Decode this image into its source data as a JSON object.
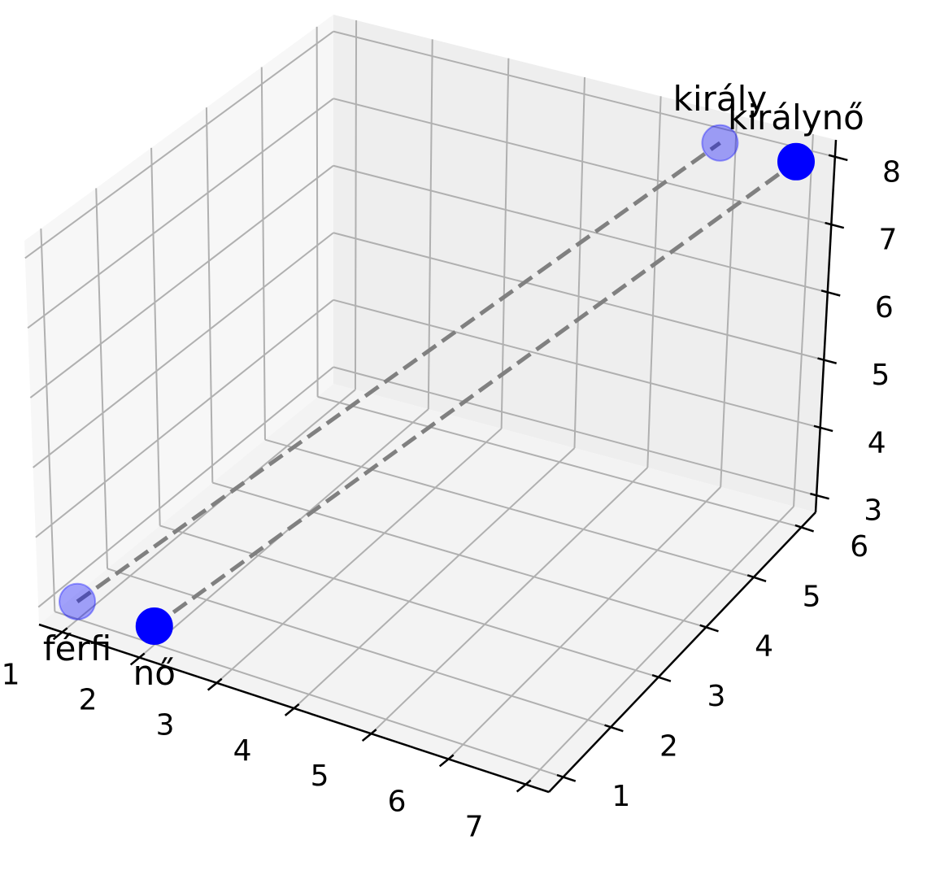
{
  "chart_data": {
    "type": "scatter",
    "projection": "3d",
    "title": "",
    "xlabel": "",
    "ylabel": "",
    "zlabel": "",
    "xlim": [
      0.7,
      7.3
    ],
    "ylim": [
      0.7,
      6.3
    ],
    "zlim": [
      2.75,
      8.25
    ],
    "x_ticks": [
      "1",
      "2",
      "3",
      "4",
      "5",
      "6",
      "7"
    ],
    "y_ticks": [
      "1",
      "2",
      "3",
      "4",
      "5",
      "6"
    ],
    "z_ticks": [
      "3",
      "4",
      "5",
      "6",
      "7",
      "8"
    ],
    "grid": true,
    "points": [
      {
        "label": "férfi",
        "x": 1,
        "y": 1,
        "z": 3,
        "color": "#0000ff",
        "alpha": 0.35
      },
      {
        "label": "nő",
        "x": 2,
        "y": 1,
        "z": 3,
        "color": "#0000ff",
        "alpha": 1.0
      },
      {
        "label": "király",
        "x": 6,
        "y": 6,
        "z": 8,
        "color": "#0000ff",
        "alpha": 0.35
      },
      {
        "label": "királynő",
        "x": 7,
        "y": 6,
        "z": 8,
        "color": "#0000ff",
        "alpha": 1.0
      }
    ],
    "connectors": [
      {
        "from": "férfi",
        "to": "király",
        "color": "#808080",
        "style": "dashed"
      },
      {
        "from": "nő",
        "to": "királynő",
        "color": "#808080",
        "style": "dashed"
      }
    ]
  }
}
